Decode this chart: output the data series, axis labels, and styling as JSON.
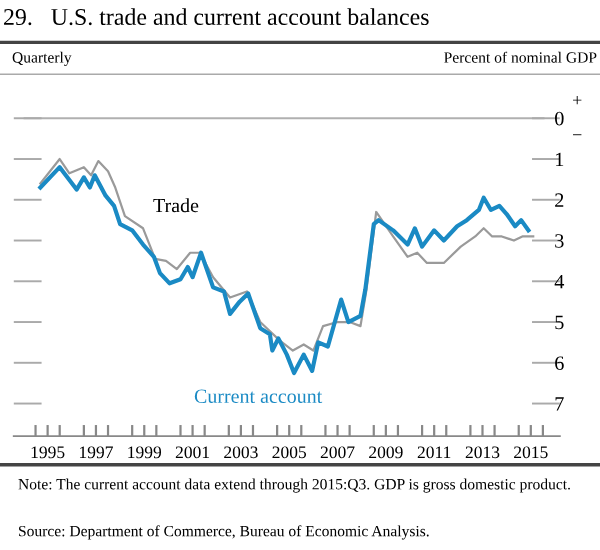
{
  "chart_data": {
    "type": "line",
    "title": "29.   U.S. trade and current account balances",
    "annotations": [
      "Quarterly",
      "Percent of nominal GDP",
      "+",
      "−",
      "Note: The current account data extend through 2015:Q3. GDP is gross domestic product.",
      "Source: Department of Commerce, Bureau of Economic Analysis."
    ],
    "series": [
      {
        "name": "Trade",
        "color": "#9a9a9a",
        "x": [
          1995.2,
          1996.0,
          1996.4,
          1997.0,
          1997.3,
          1997.6,
          1998.0,
          1998.3,
          1998.7,
          1999.45,
          1999.95,
          2000.4,
          2000.85,
          2001.4,
          2001.8,
          2002.35,
          2003.05,
          2003.75,
          2004.3,
          2005.1,
          2005.65,
          2006.1,
          2006.5,
          2006.9,
          2007.5,
          2008.0,
          2008.45,
          2008.7,
          2009.1,
          2009.8,
          2010.4,
          2010.8,
          2011.2,
          2011.9,
          2012.6,
          2013.2,
          2013.55,
          2013.9,
          2014.3,
          2014.8,
          2015.15,
          2015.6
        ],
        "values": [
          1.6,
          1.0,
          1.35,
          1.2,
          1.4,
          1.05,
          1.3,
          1.7,
          2.4,
          2.7,
          3.45,
          3.5,
          3.7,
          3.3,
          3.3,
          3.9,
          4.4,
          4.25,
          5.0,
          5.45,
          5.7,
          5.55,
          5.7,
          5.1,
          5.0,
          5.0,
          5.1,
          4.2,
          2.3,
          2.9,
          3.4,
          3.3,
          3.55,
          3.55,
          3.15,
          2.9,
          2.7,
          2.9,
          2.9,
          3.0,
          2.9,
          2.9
        ]
      },
      {
        "name": "Current account",
        "color": "#1a8ac4",
        "x": [
          1995.2,
          1996.0,
          1996.7,
          1997.0,
          1997.25,
          1997.45,
          1997.9,
          1998.25,
          1998.5,
          1999.0,
          1999.45,
          1999.9,
          2000.15,
          2000.55,
          2001.0,
          2001.3,
          2001.5,
          2001.85,
          2002.35,
          2002.8,
          2003.05,
          2003.45,
          2003.8,
          2004.3,
          2004.7,
          2004.8,
          2005.05,
          2005.4,
          2005.7,
          2006.1,
          2006.45,
          2006.7,
          2007.1,
          2007.65,
          2007.95,
          2008.45,
          2008.65,
          2009.0,
          2009.2,
          2009.8,
          2010.4,
          2010.7,
          2011.0,
          2011.5,
          2011.9,
          2012.45,
          2012.85,
          2013.35,
          2013.55,
          2013.85,
          2014.2,
          2014.5,
          2014.85,
          2015.1,
          2015.4
        ],
        "values": [
          1.7,
          1.2,
          1.75,
          1.45,
          1.7,
          1.4,
          1.9,
          2.15,
          2.6,
          2.75,
          3.1,
          3.4,
          3.8,
          4.05,
          3.95,
          3.65,
          3.9,
          3.3,
          4.15,
          4.25,
          4.8,
          4.5,
          4.3,
          5.15,
          5.3,
          5.7,
          5.4,
          5.8,
          6.25,
          5.8,
          6.2,
          5.5,
          5.6,
          4.45,
          5.0,
          4.85,
          4.2,
          2.6,
          2.5,
          2.75,
          3.1,
          2.7,
          3.15,
          2.75,
          3.0,
          2.65,
          2.5,
          2.25,
          1.95,
          2.25,
          2.15,
          2.35,
          2.65,
          2.5,
          2.75
        ]
      }
    ],
    "xlim": [
      1994.1,
      2016.7
    ],
    "ylim": [
      7.8,
      0
    ],
    "xticks": [
      {
        "value": 1995,
        "label": null
      },
      {
        "value": 1995.5,
        "label": "1995"
      },
      {
        "value": 1996,
        "label": null
      },
      {
        "value": 1997,
        "label": null
      },
      {
        "value": 1997.5,
        "label": "1997"
      },
      {
        "value": 1998,
        "label": null
      },
      {
        "value": 1999,
        "label": null
      },
      {
        "value": 1999.5,
        "label": "1999"
      },
      {
        "value": 2000,
        "label": null
      },
      {
        "value": 2001,
        "label": null
      },
      {
        "value": 2001.5,
        "label": "2001"
      },
      {
        "value": 2002,
        "label": null
      },
      {
        "value": 2003,
        "label": null
      },
      {
        "value": 2003.5,
        "label": "2003"
      },
      {
        "value": 2004,
        "label": null
      },
      {
        "value": 2005,
        "label": null
      },
      {
        "value": 2005.5,
        "label": "2005"
      },
      {
        "value": 2006,
        "label": null
      },
      {
        "value": 2007,
        "label": null
      },
      {
        "value": 2007.5,
        "label": "2007"
      },
      {
        "value": 2008,
        "label": null
      },
      {
        "value": 2009,
        "label": null
      },
      {
        "value": 2009.5,
        "label": "2009"
      },
      {
        "value": 2010,
        "label": null
      },
      {
        "value": 2011,
        "label": null
      },
      {
        "value": 2011.5,
        "label": "2011"
      },
      {
        "value": 2012,
        "label": null
      },
      {
        "value": 2013,
        "label": null
      },
      {
        "value": 2013.5,
        "label": "2013"
      },
      {
        "value": 2014,
        "label": null
      },
      {
        "value": 2015,
        "label": null
      },
      {
        "value": 2015.5,
        "label": "2015"
      },
      {
        "value": 2016,
        "label": null
      }
    ],
    "yticks": [
      0,
      1,
      2,
      3,
      4,
      5,
      6,
      7
    ],
    "ref_lines": [
      {
        "axis": "y",
        "value": 0,
        "color": "#b0b0b0"
      }
    ],
    "grid": false,
    "legend": false,
    "marker": "none",
    "line_style": "solid"
  }
}
